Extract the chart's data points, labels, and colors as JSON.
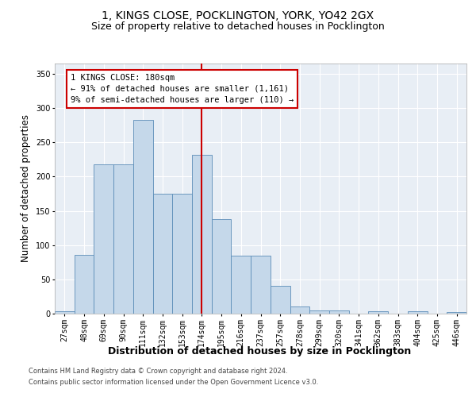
{
  "title": "1, KINGS CLOSE, POCKLINGTON, YORK, YO42 2GX",
  "subtitle": "Size of property relative to detached houses in Pocklington",
  "xlabel": "Distribution of detached houses by size in Pocklington",
  "ylabel": "Number of detached properties",
  "footer1": "Contains HM Land Registry data © Crown copyright and database right 2024.",
  "footer2": "Contains public sector information licensed under the Open Government Licence v3.0.",
  "bin_labels": [
    "27sqm",
    "48sqm",
    "69sqm",
    "90sqm",
    "111sqm",
    "132sqm",
    "153sqm",
    "174sqm",
    "195sqm",
    "216sqm",
    "237sqm",
    "257sqm",
    "278sqm",
    "299sqm",
    "320sqm",
    "341sqm",
    "362sqm",
    "383sqm",
    "404sqm",
    "425sqm",
    "446sqm"
  ],
  "bar_values": [
    3,
    86,
    218,
    218,
    283,
    175,
    175,
    232,
    138,
    85,
    85,
    40,
    10,
    5,
    5,
    0,
    3,
    0,
    3,
    0,
    2
  ],
  "bar_color": "#c5d8ea",
  "bar_edge_color": "#5b8db8",
  "vline_label_index": 7,
  "vline_color": "#cc0000",
  "annotation_line1": "1 KINGS CLOSE: 180sqm",
  "annotation_line2": "← 91% of detached houses are smaller (1,161)",
  "annotation_line3": "9% of semi-detached houses are larger (110) →",
  "annotation_box_edge_color": "#cc0000",
  "ylim_max": 365,
  "yticks": [
    0,
    50,
    100,
    150,
    200,
    250,
    300,
    350
  ],
  "plot_bg_color": "#e8eef5",
  "grid_color": "#ffffff",
  "title_fontsize": 10,
  "subtitle_fontsize": 9,
  "ylabel_fontsize": 8.5,
  "xlabel_fontsize": 9,
  "tick_fontsize": 7,
  "annot_fontsize": 7.5
}
